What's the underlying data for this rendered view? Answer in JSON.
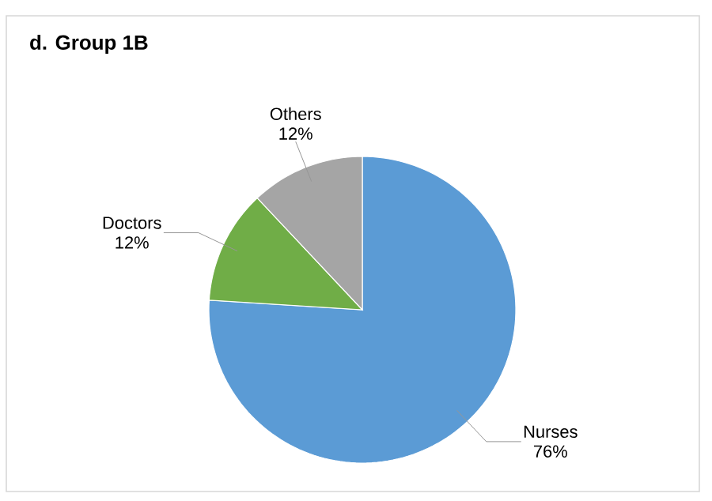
{
  "chart_data": {
    "type": "pie",
    "title": "d. Group 1B",
    "categories": [
      "Nurses",
      "Doctors",
      "Others"
    ],
    "values": [
      76,
      12,
      12
    ],
    "colors": [
      "#5b9bd5",
      "#70ad47",
      "#a5a5a5"
    ],
    "value_labels": [
      "76%",
      "12%",
      "12%"
    ]
  }
}
